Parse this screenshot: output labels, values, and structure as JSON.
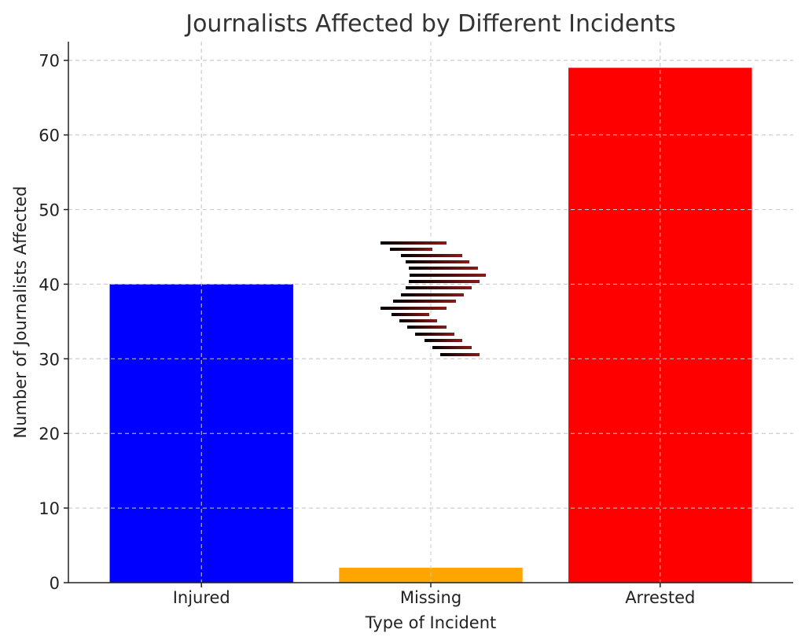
{
  "chart_data": {
    "type": "bar",
    "title": "Journalists Affected by Different Incidents",
    "xlabel": "Type of Incident",
    "ylabel": "Number of Journalists Affected",
    "categories": [
      "Injured",
      "Missing",
      "Arrested"
    ],
    "values": [
      40,
      2,
      69
    ],
    "colors": [
      "#0000ff",
      "#ffa500",
      "#ff0000"
    ],
    "ylim": [
      0,
      72.5
    ],
    "yticks": [
      0,
      10,
      20,
      30,
      40,
      50,
      60,
      70
    ],
    "grid": true,
    "legend": "none",
    "decoration": {
      "description": "stack of short black-to-dark-red horizontal strokes above the Missing bar",
      "gradient_colors": [
        "#000000",
        "#8b1a1a"
      ]
    }
  }
}
